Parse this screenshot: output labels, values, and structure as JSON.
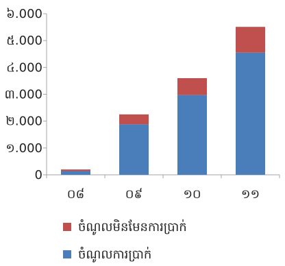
{
  "chart_data": {
    "type": "bar",
    "stacked": true,
    "categories": [
      "០៨",
      "០៩",
      "១០",
      "១១"
    ],
    "series": [
      {
        "name": "ចំណូលការប្រាក់",
        "color": "#4a7ebb",
        "values": [
          140,
          1880,
          2970,
          4550
        ]
      },
      {
        "name": "ចំណូលមិនមែនការប្រាក់",
        "color": "#c0504d",
        "values": [
          60,
          370,
          630,
          960
        ]
      }
    ],
    "y_ticks": [
      {
        "value": 0,
        "label": "0"
      },
      {
        "value": 1000,
        "label": "១.000"
      },
      {
        "value": 2000,
        "label": "២.000"
      },
      {
        "value": 3000,
        "label": "៣.000"
      },
      {
        "value": 4000,
        "label": "៤.000"
      },
      {
        "value": 5000,
        "label": "៥.000"
      },
      {
        "value": 6000,
        "label": "៦.000"
      }
    ],
    "ylim": [
      0,
      6000
    ],
    "legend_position": "bottom",
    "grid": false
  }
}
